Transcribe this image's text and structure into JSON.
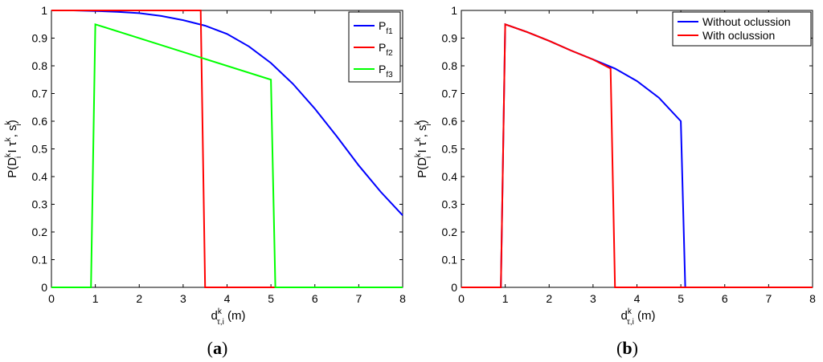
{
  "chart_data": [
    {
      "type": "line",
      "panel_label": "a",
      "xlabel": {
        "main": "d",
        "sup": "k",
        "sub": "τ,i",
        "unit": " (m)"
      },
      "ylabel": {
        "text": "P(D",
        "sup1": "k",
        "sub1": "i",
        "mid": " I τ",
        "sup2": "k",
        "mid2": ", s",
        "sup3": "k",
        "sub3": "i",
        "end": ")"
      },
      "xlim": [
        0,
        8
      ],
      "ylim": [
        0,
        1
      ],
      "xticks": [
        "0",
        "1",
        "2",
        "3",
        "4",
        "5",
        "6",
        "7",
        "8"
      ],
      "yticks": [
        "0",
        "0.1",
        "0.2",
        "0.3",
        "0.4",
        "0.5",
        "0.6",
        "0.7",
        "0.8",
        "0.9",
        "1"
      ],
      "grid": false,
      "legend_position": "top-right",
      "series": [
        {
          "name": "P",
          "name_sub": "f1",
          "color": "#0000ff",
          "x": [
            0,
            0.5,
            1,
            1.5,
            2,
            2.5,
            3,
            3.5,
            4,
            4.5,
            5,
            5.5,
            6,
            6.5,
            7,
            7.5,
            8
          ],
          "y": [
            1,
            1,
            0.998,
            0.995,
            0.99,
            0.98,
            0.965,
            0.945,
            0.915,
            0.87,
            0.81,
            0.735,
            0.645,
            0.545,
            0.44,
            0.345,
            0.26
          ]
        },
        {
          "name": "P",
          "name_sub": "f2",
          "color": "#ff0000",
          "x": [
            0,
            3.4,
            3.5,
            8
          ],
          "y": [
            1,
            1,
            0,
            0
          ]
        },
        {
          "name": "P",
          "name_sub": "f3",
          "color": "#00ff00",
          "x": [
            0,
            0.9,
            1,
            5,
            5.1,
            8
          ],
          "y": [
            0,
            0,
            0.95,
            0.75,
            0,
            0
          ]
        }
      ]
    },
    {
      "type": "line",
      "panel_label": "b",
      "xlabel": {
        "main": "d",
        "sup": "k",
        "sub": "τ,i",
        "unit": " (m)"
      },
      "ylabel": {
        "text": "P(D",
        "sup1": "k",
        "sub1": "i",
        "mid": " I τ",
        "sup2": "k",
        "mid2": ", s",
        "sup3": "k",
        "sub3": "i",
        "end": ")"
      },
      "xlim": [
        0,
        8
      ],
      "ylim": [
        0,
        1
      ],
      "xticks": [
        "0",
        "1",
        "2",
        "3",
        "4",
        "5",
        "6",
        "7",
        "8"
      ],
      "yticks": [
        "0",
        "0.1",
        "0.2",
        "0.3",
        "0.4",
        "0.5",
        "0.6",
        "0.7",
        "0.8",
        "0.9",
        "1"
      ],
      "grid": false,
      "legend_position": "top-right",
      "series": [
        {
          "name": "Without oclussion",
          "color": "#0000ff",
          "x": [
            0,
            0.9,
            1,
            1.5,
            2,
            2.5,
            3,
            3.5,
            4,
            4.5,
            5,
            5.1,
            8
          ],
          "y": [
            0,
            0,
            0.95,
            0.922,
            0.89,
            0.855,
            0.823,
            0.79,
            0.745,
            0.685,
            0.6,
            0,
            0
          ]
        },
        {
          "name": "With oclussion",
          "color": "#ff0000",
          "x": [
            0,
            0.9,
            1,
            1.5,
            2,
            2.5,
            3,
            3.4,
            3.5,
            8
          ],
          "y": [
            0,
            0,
            0.95,
            0.922,
            0.89,
            0.855,
            0.823,
            0.79,
            0,
            0
          ]
        }
      ]
    }
  ]
}
